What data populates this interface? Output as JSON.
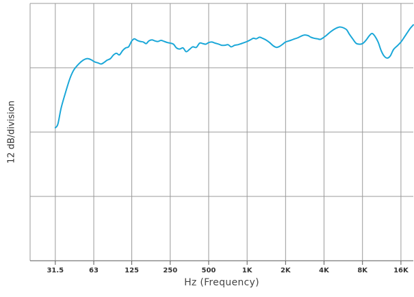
{
  "chart_data": {
    "type": "line",
    "title": "",
    "xlabel": "Hz (Frequency)",
    "ylabel": "12 dB/division",
    "x_scale": "log",
    "x_ticks": [
      31.5,
      63,
      125,
      250,
      500,
      1000,
      2000,
      4000,
      8000,
      16000
    ],
    "x_tick_labels": [
      "31.5",
      "63",
      "125",
      "250",
      "500",
      "1K",
      "2K",
      "4K",
      "8K",
      "16K"
    ],
    "xlim": [
      20,
      20000
    ],
    "ylim": [
      -48,
      0
    ],
    "y_gridlines": [
      -12,
      -24,
      -36
    ],
    "grid": true,
    "line_color": "#1aa7d8",
    "grid_color": "#999999",
    "series": [
      {
        "x": [
          31.5,
          33,
          35,
          38,
          41,
          44,
          48,
          52,
          56,
          60,
          64,
          68,
          72,
          76,
          80,
          85,
          90,
          95,
          100,
          106,
          112,
          118,
          125,
          131,
          138,
          146,
          154,
          162,
          170,
          180,
          190,
          200,
          212,
          225,
          238,
          250,
          265,
          280,
          297,
          315,
          333,
          353,
          375,
          400,
          425,
          450,
          475,
          500,
          530,
          560,
          600,
          630,
          670,
          710,
          750,
          800,
          850,
          900,
          950,
          1000,
          1060,
          1120,
          1180,
          1250,
          1320,
          1400,
          1500,
          1600,
          1700,
          1800,
          1900,
          2000,
          2120,
          2240,
          2360,
          2500,
          2650,
          2800,
          3000,
          3150,
          3350,
          3550,
          3750,
          4000,
          4250,
          4500,
          4750,
          5000,
          5300,
          5600,
          6000,
          6300,
          6700,
          7100,
          7500,
          8000,
          8500,
          9000,
          9500,
          10000,
          10600,
          11200,
          11800,
          12500,
          13200,
          14000,
          15000,
          16000,
          17000,
          18000,
          19000,
          20000
        ],
        "y": [
          -23.2,
          -22.5,
          -19.5,
          -16.5,
          -14.0,
          -12.4,
          -11.3,
          -10.6,
          -10.3,
          -10.5,
          -10.9,
          -11.1,
          -11.3,
          -11.0,
          -10.6,
          -10.3,
          -9.6,
          -9.3,
          -9.6,
          -8.8,
          -8.3,
          -8.1,
          -7.0,
          -6.6,
          -6.9,
          -7.1,
          -7.2,
          -7.5,
          -7.0,
          -6.8,
          -7.0,
          -7.1,
          -6.9,
          -7.1,
          -7.3,
          -7.4,
          -7.6,
          -8.3,
          -8.5,
          -8.3,
          -9.0,
          -8.6,
          -8.1,
          -8.2,
          -7.4,
          -7.5,
          -7.6,
          -7.3,
          -7.2,
          -7.4,
          -7.6,
          -7.8,
          -7.8,
          -7.7,
          -8.1,
          -7.8,
          -7.7,
          -7.5,
          -7.3,
          -7.1,
          -6.8,
          -6.5,
          -6.6,
          -6.3,
          -6.5,
          -6.8,
          -7.3,
          -7.9,
          -8.2,
          -8.0,
          -7.6,
          -7.2,
          -7.0,
          -6.8,
          -6.6,
          -6.4,
          -6.1,
          -5.9,
          -6.0,
          -6.3,
          -6.5,
          -6.6,
          -6.7,
          -6.3,
          -5.8,
          -5.3,
          -4.9,
          -4.6,
          -4.4,
          -4.5,
          -4.9,
          -5.7,
          -6.6,
          -7.4,
          -7.6,
          -7.5,
          -6.9,
          -6.1,
          -5.6,
          -6.1,
          -7.2,
          -8.8,
          -9.8,
          -10.2,
          -9.8,
          -8.6,
          -7.9,
          -7.2,
          -6.3,
          -5.4,
          -4.6,
          -4.0
        ]
      }
    ]
  }
}
